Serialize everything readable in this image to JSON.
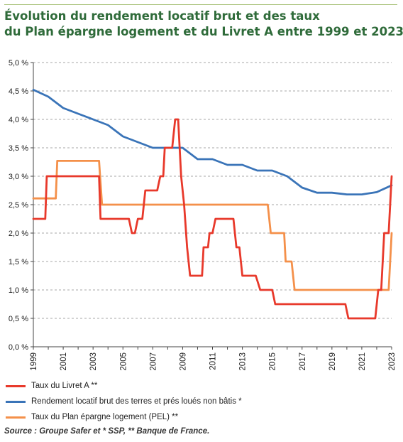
{
  "title_line1": "Évolution du rendement locatif brut et des taux",
  "title_line2": "du Plan épargne logement et du Livret A entre 1999 et 2023",
  "source": "Source : Groupe Safer et * SSP, ** Banque de France.",
  "chart_data": {
    "type": "line",
    "title": "",
    "xlabel": "",
    "ylabel": "",
    "xlim": [
      1999,
      2023
    ],
    "ylim": [
      0,
      5
    ],
    "x_ticks": [
      "1999",
      "2001",
      "2003",
      "2005",
      "2007",
      "2009",
      "2011",
      "2013",
      "2015",
      "2017",
      "2019",
      "2021",
      "2023"
    ],
    "y_ticks": [
      "0,0 %",
      "0,5 %",
      "1,0 %",
      "1,5 %",
      "2,0 %",
      "2,5 %",
      "3,0 %",
      "3,5 %",
      "4,0 %",
      "4,5 %",
      "5,0 %"
    ],
    "grid": "horizontal dashed",
    "legend_position": "bottom",
    "series": [
      {
        "name": "Taux du Livret A **",
        "color": "#e8392b",
        "points": [
          [
            1999,
            2.25
          ],
          [
            1999.8,
            2.25
          ],
          [
            1999.9,
            3.0
          ],
          [
            2003.4,
            3.0
          ],
          [
            2003.5,
            2.25
          ],
          [
            2005.4,
            2.25
          ],
          [
            2005.6,
            2.0
          ],
          [
            2005.8,
            2.0
          ],
          [
            2006.0,
            2.25
          ],
          [
            2006.3,
            2.25
          ],
          [
            2006.5,
            2.75
          ],
          [
            2007.3,
            2.75
          ],
          [
            2007.5,
            3.0
          ],
          [
            2007.7,
            3.0
          ],
          [
            2007.8,
            3.5
          ],
          [
            2008.3,
            3.5
          ],
          [
            2008.5,
            4.0
          ],
          [
            2008.7,
            4.0
          ],
          [
            2008.9,
            3.0
          ],
          [
            2009.1,
            2.5
          ],
          [
            2009.3,
            1.75
          ],
          [
            2009.5,
            1.25
          ],
          [
            2010.3,
            1.25
          ],
          [
            2010.4,
            1.75
          ],
          [
            2010.7,
            1.75
          ],
          [
            2010.8,
            2.0
          ],
          [
            2011.0,
            2.0
          ],
          [
            2011.2,
            2.25
          ],
          [
            2012.4,
            2.25
          ],
          [
            2012.6,
            1.75
          ],
          [
            2012.8,
            1.75
          ],
          [
            2013.0,
            1.25
          ],
          [
            2013.9,
            1.25
          ],
          [
            2014.2,
            1.0
          ],
          [
            2015.0,
            1.0
          ],
          [
            2015.2,
            0.75
          ],
          [
            2019.9,
            0.75
          ],
          [
            2020.1,
            0.5
          ],
          [
            2021.9,
            0.5
          ],
          [
            2022.1,
            1.0
          ],
          [
            2022.3,
            1.0
          ],
          [
            2022.5,
            2.0
          ],
          [
            2022.8,
            2.0
          ],
          [
            2023,
            3.0
          ]
        ]
      },
      {
        "name": "Rendement locatif brut des terres et prés loués non bâtis *",
        "color": "#3a74b8",
        "points": [
          [
            1999,
            4.52
          ],
          [
            2000,
            4.4
          ],
          [
            2001,
            4.2
          ],
          [
            2002,
            4.1
          ],
          [
            2003,
            4.0
          ],
          [
            2004,
            3.9
          ],
          [
            2005,
            3.7
          ],
          [
            2006,
            3.6
          ],
          [
            2007,
            3.5
          ],
          [
            2008,
            3.5
          ],
          [
            2009,
            3.5
          ],
          [
            2010,
            3.3
          ],
          [
            2011,
            3.3
          ],
          [
            2012,
            3.2
          ],
          [
            2013,
            3.2
          ],
          [
            2014,
            3.1
          ],
          [
            2015,
            3.1
          ],
          [
            2016,
            3.0
          ],
          [
            2017,
            2.8
          ],
          [
            2018,
            2.71
          ],
          [
            2019,
            2.71
          ],
          [
            2020,
            2.68
          ],
          [
            2021,
            2.68
          ],
          [
            2022,
            2.72
          ],
          [
            2023,
            2.84
          ]
        ]
      },
      {
        "name": "Taux du Plan épargne logement (PEL) **",
        "color": "#f4904a",
        "points": [
          [
            1999,
            2.61
          ],
          [
            2000.5,
            2.61
          ],
          [
            2000.6,
            3.27
          ],
          [
            2003.4,
            3.27
          ],
          [
            2003.6,
            2.5
          ],
          [
            2014.7,
            2.5
          ],
          [
            2014.9,
            2.0
          ],
          [
            2015.8,
            2.0
          ],
          [
            2015.9,
            1.5
          ],
          [
            2016.3,
            1.5
          ],
          [
            2016.5,
            1.0
          ],
          [
            2022.8,
            1.0
          ],
          [
            2023,
            2.0
          ]
        ]
      }
    ]
  }
}
